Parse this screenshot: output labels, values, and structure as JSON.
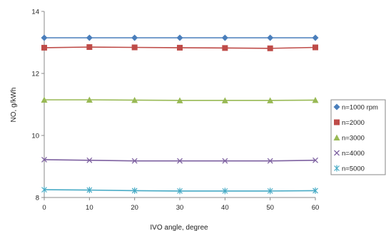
{
  "chart_data": {
    "type": "line",
    "xlabel": "IVO angle, degree",
    "ylabel": "NO, g/kWh",
    "xlim": [
      0,
      60
    ],
    "ylim": [
      8,
      14
    ],
    "x_ticks": [
      "0",
      "10",
      "20",
      "30",
      "40",
      "50",
      "60"
    ],
    "y_ticks": [
      "8",
      "10",
      "12",
      "14"
    ],
    "grid": false,
    "legend_position": "right",
    "x": [
      0,
      10,
      20,
      30,
      40,
      50,
      60
    ],
    "series": [
      {
        "name": "n=1000 rpm",
        "color": "#4a7ebb",
        "marker": "diamond",
        "values": [
          13.15,
          13.15,
          13.15,
          13.15,
          13.15,
          13.15,
          13.15
        ]
      },
      {
        "name": "n=2000",
        "color": "#be4b48",
        "marker": "square",
        "values": [
          12.83,
          12.85,
          12.84,
          12.83,
          12.82,
          12.81,
          12.84
        ]
      },
      {
        "name": "n=3000",
        "color": "#98b954",
        "marker": "triangle",
        "values": [
          11.15,
          11.15,
          11.14,
          11.13,
          11.13,
          11.13,
          11.14
        ]
      },
      {
        "name": "n=4000",
        "color": "#7d60a0",
        "marker": "x",
        "values": [
          9.22,
          9.2,
          9.18,
          9.18,
          9.18,
          9.18,
          9.2
        ]
      },
      {
        "name": "n=5000",
        "color": "#46aac5",
        "marker": "star",
        "values": [
          8.25,
          8.24,
          8.22,
          8.21,
          8.21,
          8.21,
          8.22
        ]
      }
    ]
  }
}
